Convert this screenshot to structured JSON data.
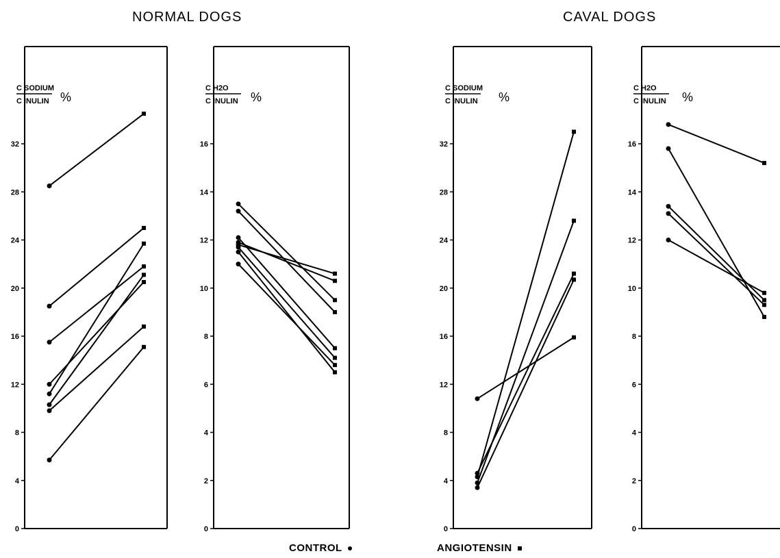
{
  "titles": {
    "normal": "NORMAL DOGS",
    "caval": "CAVAL DOGS"
  },
  "legend": {
    "control": "CONTROL",
    "angiotensin": "ANGIOTENSIN"
  },
  "chart_data": [
    {
      "type": "line",
      "group": "NORMAL DOGS",
      "ylabel_numerator": "C SODIUM",
      "ylabel_denominator": "C INULIN",
      "ylabel_unit": "%",
      "ylim": [
        0,
        35
      ],
      "yticks": [
        0,
        4,
        8,
        12,
        16,
        20,
        24,
        28,
        32
      ],
      "x": [
        "CONTROL",
        "ANGIOTENSIN"
      ],
      "series": [
        {
          "values": [
            28.5,
            34.5
          ]
        },
        {
          "values": [
            18.5,
            25.0
          ]
        },
        {
          "values": [
            15.5,
            21.8
          ]
        },
        {
          "values": [
            12.0,
            20.5
          ]
        },
        {
          "values": [
            11.2,
            23.7
          ]
        },
        {
          "values": [
            10.3,
            21.1
          ]
        },
        {
          "values": [
            9.8,
            16.8
          ]
        },
        {
          "values": [
            5.7,
            15.1
          ]
        }
      ]
    },
    {
      "type": "line",
      "group": "NORMAL DOGS",
      "ylabel_numerator": "C H2O",
      "ylabel_denominator": "C INULIN",
      "ylabel_unit": "%",
      "ylim": [
        0,
        16.5
      ],
      "yticks": [
        0,
        2,
        4,
        6,
        8,
        10,
        12,
        14,
        16
      ],
      "x": [
        "CONTROL",
        "ANGIOTENSIN"
      ],
      "series": [
        {
          "values": [
            13.5,
            9.5
          ]
        },
        {
          "values": [
            13.2,
            9.0
          ]
        },
        {
          "values": [
            12.1,
            7.5
          ]
        },
        {
          "values": [
            11.9,
            10.3
          ]
        },
        {
          "values": [
            11.8,
            10.6
          ]
        },
        {
          "values": [
            11.5,
            6.5
          ]
        },
        {
          "values": [
            11.0,
            6.8
          ]
        },
        {
          "values": [
            11.7,
            7.1
          ]
        }
      ]
    },
    {
      "type": "line",
      "group": "CAVAL DOGS",
      "ylabel_numerator": "C SODIUM",
      "ylabel_denominator": "C INULIN",
      "ylabel_unit": "%",
      "ylim": [
        0,
        35
      ],
      "yticks": [
        0,
        4,
        8,
        12,
        16,
        20,
        24,
        28,
        32
      ],
      "x": [
        "CONTROL",
        "ANGIOTENSIN"
      ],
      "series": [
        {
          "values": [
            10.8,
            15.9
          ]
        },
        {
          "values": [
            4.6,
            21.2
          ]
        },
        {
          "values": [
            4.3,
            33.0
          ]
        },
        {
          "values": [
            3.8,
            25.6
          ]
        },
        {
          "values": [
            3.4,
            20.7
          ]
        }
      ]
    },
    {
      "type": "line",
      "group": "CAVAL DOGS",
      "ylabel_numerator": "C H2O",
      "ylabel_denominator": "C INULIN",
      "ylabel_unit": "%",
      "ylim": [
        0,
        16.5
      ],
      "yticks": [
        0,
        2,
        4,
        6,
        8,
        10,
        12,
        14,
        16
      ],
      "x": [
        "CONTROL",
        "ANGIOTENSIN"
      ],
      "series": [
        {
          "values": [
            16.8,
            15.2
          ]
        },
        {
          "values": [
            15.8,
            8.8
          ]
        },
        {
          "values": [
            13.4,
            9.5
          ]
        },
        {
          "values": [
            13.1,
            9.3
          ]
        },
        {
          "values": [
            12.0,
            9.8
          ]
        }
      ]
    }
  ]
}
